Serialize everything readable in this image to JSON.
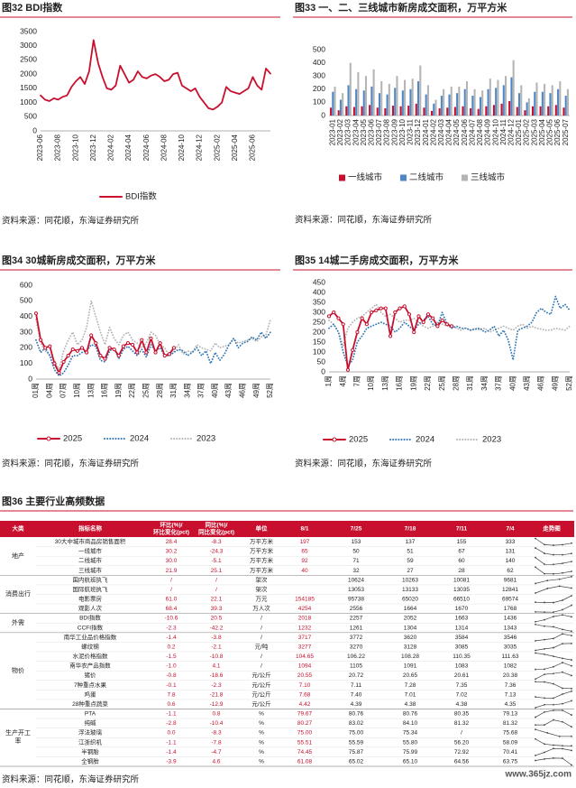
{
  "chart_data": [
    {
      "type": "line",
      "title": "图32  BDI指数",
      "source": "资料来源：同花顺，东海证券研究所",
      "categories": [
        "2023-06",
        null,
        null,
        null,
        "2023-08",
        null,
        null,
        null,
        "2023-10",
        null,
        null,
        null,
        "2023-12",
        null,
        null,
        null,
        "2024-02",
        null,
        null,
        null,
        "2024-04",
        null,
        null,
        null,
        "2024-06",
        null,
        null,
        null,
        "2024-08",
        null,
        null,
        null,
        "2024-10",
        null,
        null,
        null,
        "2024-12",
        null,
        null,
        null,
        "2025-02",
        null,
        null,
        null,
        "2025-04",
        null,
        null,
        null,
        "2025-06",
        null,
        null,
        null,
        null
      ],
      "series": [
        {
          "name": "BDI指数",
          "color": "#c8102e",
          "values": [
            1250,
            1100,
            1050,
            1150,
            1100,
            1200,
            1250,
            1550,
            1750,
            1900,
            1650,
            2100,
            3200,
            2400,
            1900,
            1500,
            1450,
            1600,
            2300,
            2000,
            1700,
            1800,
            2100,
            1900,
            1850,
            1950,
            2000,
            1900,
            1750,
            1800,
            2000,
            2050,
            1600,
            1500,
            1400,
            1500,
            1200,
            1000,
            800,
            750,
            850,
            1000,
            1550,
            1400,
            1350,
            1300,
            1400,
            1500,
            1900,
            1600,
            1450,
            2200,
            2018
          ]
        }
      ],
      "ylim": [
        0,
        3500
      ],
      "yticks": [
        0,
        500,
        1000,
        1500,
        2000,
        2500,
        3000,
        3500
      ],
      "grid": false
    },
    {
      "type": "bar",
      "title": "图33  一、二、三线城市新房成交面积，万平方米",
      "source": "资料来源：同花顺，东海证券研究所",
      "categories": [
        "2023-01",
        "2023-02",
        "2023-03",
        "2023-04",
        "2023-05",
        "2023-06",
        "2023-07",
        "2023-08",
        "2023-09",
        "2023-10",
        "2023-11",
        "2023-12",
        "2024-01",
        "2024-02",
        "2024-03",
        "2024-04",
        "2024-05",
        "2024-06",
        "2024-07",
        "2024-08",
        "2024-09",
        "2024-10",
        "2024-11",
        "2024-12",
        "2025-01",
        "2025-02",
        "2025-03",
        "2025-04",
        "2025-05",
        "2025-06",
        "2025-07"
      ],
      "series": [
        {
          "name": "一线城市",
          "color": "#c8102e",
          "values": [
            60,
            40,
            70,
            65,
            70,
            80,
            60,
            55,
            75,
            70,
            75,
            90,
            60,
            35,
            55,
            60,
            65,
            70,
            55,
            50,
            70,
            80,
            90,
            110,
            65,
            40,
            70,
            70,
            70,
            80,
            60
          ]
        },
        {
          "name": "二线城市",
          "color": "#4f86c6",
          "values": [
            180,
            120,
            230,
            200,
            190,
            220,
            170,
            160,
            210,
            190,
            200,
            260,
            160,
            90,
            150,
            160,
            170,
            200,
            150,
            140,
            200,
            210,
            230,
            290,
            170,
            100,
            180,
            180,
            170,
            200,
            150
          ]
        },
        {
          "name": "三线城市",
          "color": "#b4b4b4",
          "values": [
            220,
            170,
            400,
            330,
            300,
            350,
            260,
            240,
            300,
            270,
            280,
            380,
            230,
            120,
            200,
            220,
            220,
            260,
            200,
            190,
            280,
            270,
            300,
            420,
            230,
            130,
            250,
            240,
            230,
            260,
            200
          ]
        }
      ],
      "ylim": [
        0,
        500
      ],
      "yticks": [
        0,
        100,
        200,
        300,
        400,
        500
      ],
      "grid": false
    },
    {
      "type": "line",
      "title": "图34  30城新房成交面积，万平方米",
      "source": "资料来源：同花顺，东海证券研究所",
      "categories": [
        "01周",
        null,
        null,
        "04周",
        null,
        null,
        "07周",
        null,
        null,
        "10周",
        null,
        null,
        "13周",
        null,
        null,
        "16周",
        null,
        null,
        "19周",
        null,
        null,
        "22周",
        null,
        null,
        "25周",
        null,
        null,
        "28周",
        null,
        null,
        "31周",
        null,
        null,
        "34周",
        null,
        null,
        "37周",
        null,
        null,
        "40周",
        null,
        null,
        "43周",
        null,
        null,
        "46周",
        null,
        null,
        "49周",
        null,
        null,
        "52周"
      ],
      "series": [
        {
          "name": "2025",
          "color": "#c8102e",
          "dash": "solid",
          "marker": true,
          "values": [
            420,
            250,
            200,
            210,
            100,
            40,
            110,
            150,
            190,
            180,
            200,
            170,
            280,
            230,
            150,
            130,
            200,
            190,
            150,
            210,
            230,
            220,
            170,
            250,
            170,
            260,
            170,
            230,
            150,
            160,
            200,
            null,
            null,
            null,
            null,
            null,
            null,
            null,
            null,
            null,
            null,
            null,
            null,
            null,
            null,
            null,
            null,
            null,
            null,
            null,
            null,
            null
          ]
        },
        {
          "name": "2024",
          "color": "#2e75b6",
          "dash": "dotted",
          "marker": false,
          "values": [
            250,
            170,
            200,
            150,
            60,
            20,
            40,
            90,
            150,
            150,
            170,
            180,
            220,
            210,
            120,
            110,
            180,
            200,
            130,
            190,
            210,
            180,
            150,
            190,
            140,
            220,
            180,
            200,
            150,
            150,
            170,
            190,
            180,
            150,
            170,
            200,
            150,
            180,
            100,
            170,
            120,
            160,
            220,
            260,
            200,
            230,
            240,
            270,
            250,
            300,
            260,
            300
          ]
        },
        {
          "name": "2023",
          "color": "#b4b4b4",
          "dash": "dotted",
          "marker": false,
          "values": [
            380,
            230,
            180,
            150,
            120,
            60,
            180,
            250,
            300,
            220,
            250,
            330,
            500,
            400,
            300,
            220,
            330,
            260,
            220,
            280,
            300,
            250,
            230,
            200,
            230,
            300,
            280,
            220,
            200,
            150,
            180,
            220,
            160,
            180,
            170,
            220,
            200,
            190,
            180,
            230,
            200,
            210,
            220,
            260,
            230,
            240,
            250,
            260,
            240,
            270,
            280,
            380
          ]
        }
      ],
      "ylim": [
        0,
        600
      ],
      "yticks": [
        0,
        100,
        200,
        300,
        400,
        500,
        600
      ],
      "grid": false
    },
    {
      "type": "line",
      "title": "图35  14城二手房成交面积，万平方米",
      "source": "资料来源：同花顺，东海证券研究所",
      "categories": [
        "1周",
        null,
        null,
        "4周",
        null,
        null,
        "7周",
        null,
        null,
        "10周",
        null,
        null,
        "13周",
        null,
        null,
        "16周",
        null,
        null,
        "19周",
        null,
        null,
        "22周",
        null,
        null,
        "25周",
        null,
        null,
        "28周",
        null,
        null,
        "31周",
        null,
        null,
        "34周",
        null,
        null,
        "37周",
        null,
        null,
        "40周",
        null,
        null,
        "43周",
        null,
        null,
        "46周",
        null,
        null,
        "49周",
        null,
        null,
        "52周"
      ],
      "series": [
        {
          "name": "2025",
          "color": "#c8102e",
          "dash": "solid",
          "marker": true,
          "values": [
            280,
            300,
            270,
            240,
            10,
            110,
            200,
            270,
            240,
            300,
            310,
            320,
            320,
            180,
            300,
            320,
            330,
            290,
            200,
            280,
            250,
            290,
            270,
            230,
            260,
            240,
            230,
            null,
            null,
            null,
            null,
            null,
            null,
            null,
            null,
            null,
            null,
            null,
            null,
            null,
            null,
            null,
            null,
            null,
            null,
            null,
            null,
            null,
            null,
            null,
            null,
            null
          ]
        },
        {
          "name": "2024",
          "color": "#2e75b6",
          "dash": "dotted",
          "marker": false,
          "values": [
            220,
            240,
            200,
            100,
            30,
            60,
            150,
            180,
            220,
            230,
            240,
            250,
            240,
            230,
            200,
            220,
            250,
            230,
            210,
            240,
            260,
            280,
            240,
            230,
            300,
            240,
            220,
            230,
            220,
            220,
            210,
            215,
            220,
            200,
            210,
            230,
            180,
            210,
            160,
            60,
            210,
            220,
            230,
            250,
            300,
            320,
            300,
            290,
            380,
            320,
            340,
            310
          ]
        },
        {
          "name": "2023",
          "color": "#b4b4b4",
          "dash": "dotted",
          "marker": false,
          "values": [
            260,
            240,
            200,
            130,
            220,
            250,
            270,
            280,
            300,
            320,
            340,
            300,
            280,
            290,
            270,
            250,
            260,
            260,
            270,
            250,
            230,
            220,
            230,
            250,
            240,
            230,
            230,
            220,
            210,
            220,
            210,
            220,
            210,
            220,
            200,
            210,
            220,
            230,
            220,
            210,
            230,
            240,
            220,
            230,
            220,
            215,
            210,
            210,
            220,
            215,
            210,
            230
          ]
        }
      ],
      "ylim": [
        0,
        450
      ],
      "yticks": [
        0,
        50,
        100,
        150,
        200,
        250,
        300,
        350,
        400,
        450
      ],
      "grid": false
    }
  ],
  "table": {
    "title": "图36  主要行业高频数据",
    "header": [
      "大类",
      "指标名称",
      [
        "环比(%)/",
        "环比变化(pct)"
      ],
      [
        "同比(%)/",
        "同比变化(pct)"
      ],
      "单位",
      "8/1",
      "7/25",
      "7/18",
      "7/11",
      "7/4",
      "走势图"
    ],
    "groups": [
      {
        "name": "地产",
        "rows": [
          [
            "30大中城市商品房销售面积",
            "28.4",
            "-8.3",
            "万平方米",
            "197",
            "153",
            "137",
            "155",
            "333"
          ],
          [
            "一线城市",
            "30.2",
            "-24.3",
            "万平方米",
            "65",
            "50",
            "51",
            "67",
            "131"
          ],
          [
            "二线城市",
            "30.0",
            "-5.1",
            "万平方米",
            "92",
            "71",
            "59",
            "60",
            "140"
          ],
          [
            "三线城市",
            "21.9",
            "25.1",
            "万平方米",
            "40",
            "32",
            "27",
            "28",
            "62"
          ]
        ]
      },
      {
        "name": "消费出行",
        "rows": [
          [
            "国内航班执飞",
            "/",
            "/",
            "架次",
            null,
            "10624",
            "10263",
            "10081",
            "9681"
          ],
          [
            "国际航班执飞",
            "/",
            "/",
            "架次",
            null,
            "13053",
            "13133",
            "13035",
            "12841"
          ],
          [
            "电影票房",
            "61.0",
            "22.1",
            "万元",
            "154185",
            "95738",
            "65020",
            "66510",
            "69574"
          ],
          [
            "观影人次",
            "68.4",
            "39.3",
            "万人次",
            "4254",
            "2556",
            "1664",
            "1670",
            "1768"
          ]
        ]
      },
      {
        "name": "外需",
        "rows": [
          [
            "BDI指数",
            "-10.6",
            "20.5",
            "/",
            "2018",
            "2257",
            "2052",
            "1663",
            "1436"
          ],
          [
            "CCFI指数",
            "-2.3",
            "-42.2",
            "/",
            "1232",
            "1261",
            "1304",
            "1314",
            "1343"
          ]
        ]
      },
      {
        "name": "物价",
        "rows": [
          [
            "南华工业品价格指数",
            "-1.4",
            "-3.8",
            "/",
            "3717",
            "3772",
            "3620",
            "3584",
            "3546"
          ],
          [
            "螺纹钢",
            "0.2",
            "-2.1",
            "元/吨",
            "3277",
            "3270",
            "3128",
            "3085",
            "3035"
          ],
          [
            "水泥价格指数",
            "-1.5",
            "-10.8",
            "/",
            "104.65",
            "106.22",
            "108.28",
            "110.35",
            "111.63"
          ],
          [
            "南华农产品指数",
            "-1.0",
            "4.1",
            "/",
            "1094",
            "1105",
            "1091",
            "1083",
            "1082"
          ],
          [
            "猪价",
            "-0.8",
            "-18.6",
            "元/公斤",
            "20.55",
            "20.72",
            "20.65",
            "20.61",
            "20.38"
          ],
          [
            "7种重点水果",
            "-0.1",
            "-2.3",
            "元/公斤",
            "7.10",
            "7.11",
            "7.28",
            "7.35",
            "7.36"
          ],
          [
            "鸡蛋",
            "7.8",
            "-21.8",
            "元/公斤",
            "7.68",
            "7.40",
            "7.01",
            "7.02",
            "7.13"
          ],
          [
            "28种重点蔬菜",
            "0.6",
            "-12.9",
            "元/公斤",
            "4.42",
            "4.39",
            "4.38",
            "4.38",
            "4.35"
          ]
        ]
      },
      {
        "name": "生产开工率",
        "rows": [
          [
            "PTA",
            "-1.1",
            "0.8",
            "%",
            "79.67",
            "80.76",
            "80.76",
            "80.35",
            "79.13"
          ],
          [
            "纯碱",
            "-2.8",
            "-10.4",
            "%",
            "80.27",
            "83.02",
            "84.10",
            "81.32",
            "81.32"
          ],
          [
            "浮法玻璃",
            "0.0",
            "-8.3",
            "%",
            "75.00",
            "75.00",
            "75.34",
            "/",
            "75.68"
          ],
          [
            "江浙织机",
            "-1.1",
            "-7.8",
            "%",
            "55.51",
            "55.59",
            "55.80",
            "56.20",
            "58.09"
          ],
          [
            "半钢胎",
            "-1.4",
            "-4.7",
            "%",
            "74.45",
            "75.87",
            "75.99",
            "72.92",
            "70.41"
          ],
          [
            "全钢胎",
            "-3.9",
            "4.6",
            "%",
            "61.08",
            "65.02",
            "65.10",
            "64.56",
            "63.75"
          ]
        ]
      }
    ],
    "source": "资料来源：同花顺，东海证券研究所"
  },
  "watermark": "www.365jz.com"
}
